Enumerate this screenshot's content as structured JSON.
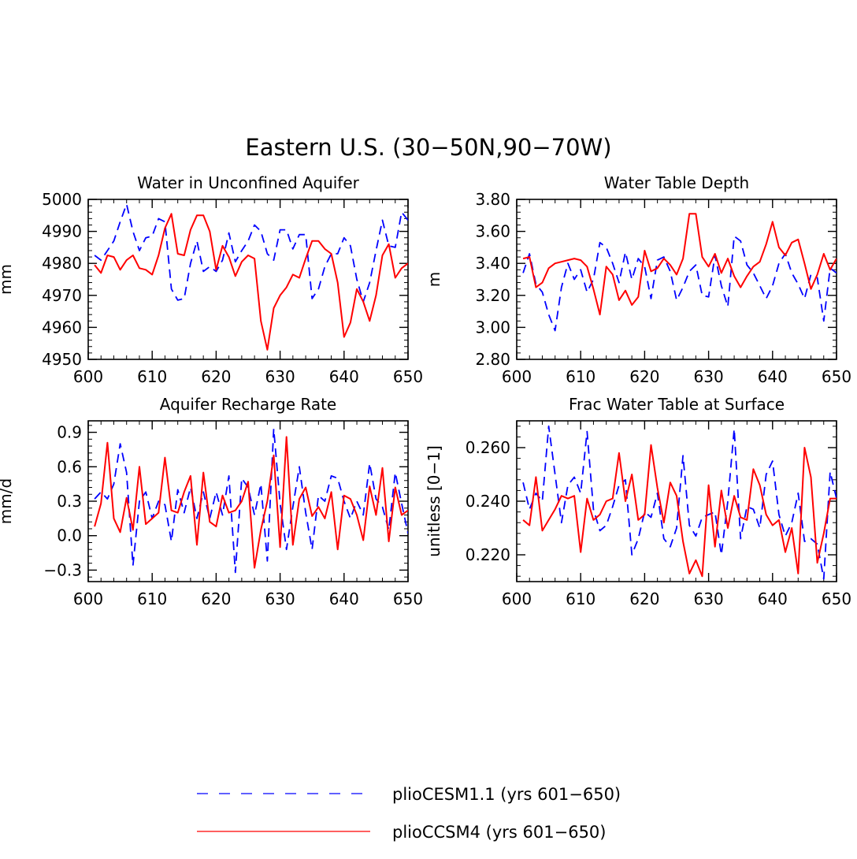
{
  "figure": {
    "title": "Eastern U.S. (30−50N,90−70W)"
  },
  "legend": [
    {
      "label": "plioCESM1.1 (yrs 601−650)",
      "color": "#0000ff",
      "dash": "dashed"
    },
    {
      "label": "plioCCSM4 (yrs 601−650)",
      "color": "#ff0000",
      "dash": "solid"
    }
  ],
  "chart_data": [
    {
      "type": "line",
      "title": "Water in Unconfined Aquifer",
      "ylabel": "mm",
      "xlim": [
        600,
        650
      ],
      "ylim": [
        4950,
        5000
      ],
      "xticks": [
        600,
        610,
        620,
        630,
        640,
        650
      ],
      "xtick_labels": [
        "600",
        "610",
        "620",
        "630",
        "640",
        "650"
      ],
      "yticks": [
        4950,
        4960,
        4970,
        4980,
        4990,
        5000
      ],
      "ytick_labels": [
        "4950",
        "4960",
        "4970",
        "4980",
        "4990",
        "5000"
      ],
      "x": [
        601,
        602,
        603,
        604,
        605,
        606,
        607,
        608,
        609,
        610,
        611,
        612,
        613,
        614,
        615,
        616,
        617,
        618,
        619,
        620,
        621,
        622,
        623,
        624,
        625,
        626,
        627,
        628,
        629,
        630,
        631,
        632,
        633,
        634,
        635,
        636,
        637,
        638,
        639,
        640,
        641,
        642,
        643,
        644,
        645,
        646,
        647,
        648,
        649,
        650
      ],
      "series": [
        {
          "name": "plioCESM1.1 (yrs 601−650)",
          "color": "#0000ff",
          "dash": "dashed",
          "values": [
            4982.5,
            4981,
            4984,
            4987,
            4993,
            4998.5,
            4990,
            4984,
            4988,
            4988.5,
            4994,
            4993,
            4972,
            4968.5,
            4969,
            4980,
            4987,
            4977.5,
            4979,
            4977.5,
            4981,
            4989.5,
            4980.5,
            4984,
            4987,
            4992,
            4990,
            4983,
            4981,
            4990.5,
            4990.5,
            4984.5,
            4989,
            4989,
            4969,
            4972,
            4979,
            4983,
            4983,
            4988,
            4985.5,
            4975,
            4968,
            4974,
            4984,
            4993.5,
            4985.5,
            4985,
            4996,
            4993.5
          ]
        },
        {
          "name": "plioCCSM4 (yrs 601−650)",
          "color": "#ff0000",
          "dash": "solid",
          "values": [
            4979.5,
            4977,
            4982.5,
            4982,
            4978,
            4981,
            4982.5,
            4978.5,
            4978,
            4976.5,
            4982.5,
            4991,
            4995.5,
            4983,
            4982.5,
            4990.5,
            4995,
            4995,
            4990,
            4978,
            4985.5,
            4982,
            4976,
            4980.5,
            4982.5,
            4981.5,
            4962,
            4953,
            4966,
            4970,
            4972.5,
            4976.5,
            4975.5,
            4981.5,
            4987,
            4987,
            4984.5,
            4983,
            4974,
            4957,
            4961.5,
            4972,
            4968,
            4962,
            4970,
            4982.5,
            4986,
            4975.5,
            4978.5,
            4980
          ]
        }
      ]
    },
    {
      "type": "line",
      "title": "Water Table Depth",
      "ylabel": "m",
      "xlim": [
        600,
        650
      ],
      "ylim": [
        2.8,
        3.8
      ],
      "xticks": [
        600,
        610,
        620,
        630,
        640,
        650
      ],
      "xtick_labels": [
        "600",
        "610",
        "620",
        "630",
        "640",
        "650"
      ],
      "yticks": [
        2.8,
        3.0,
        3.2,
        3.4,
        3.6,
        3.8
      ],
      "ytick_labels": [
        "2.80",
        "3.00",
        "3.20",
        "3.40",
        "3.60",
        "3.80"
      ],
      "x": [
        601,
        602,
        603,
        604,
        605,
        606,
        607,
        608,
        609,
        610,
        611,
        612,
        613,
        614,
        615,
        616,
        617,
        618,
        619,
        620,
        621,
        622,
        623,
        624,
        625,
        626,
        627,
        628,
        629,
        630,
        631,
        632,
        633,
        634,
        635,
        636,
        637,
        638,
        639,
        640,
        641,
        642,
        643,
        644,
        645,
        646,
        647,
        648,
        649,
        650
      ],
      "series": [
        {
          "name": "plioCESM1.1 (yrs 601−650)",
          "color": "#0000ff",
          "dash": "dashed",
          "values": [
            3.34,
            3.46,
            3.27,
            3.22,
            3.08,
            2.98,
            3.25,
            3.4,
            3.3,
            3.36,
            3.22,
            3.3,
            3.53,
            3.5,
            3.4,
            3.28,
            3.47,
            3.3,
            3.43,
            3.38,
            3.18,
            3.42,
            3.44,
            3.35,
            3.17,
            3.25,
            3.35,
            3.39,
            3.2,
            3.19,
            3.45,
            3.26,
            3.13,
            3.57,
            3.54,
            3.39,
            3.34,
            3.26,
            3.18,
            3.26,
            3.4,
            3.46,
            3.34,
            3.27,
            3.18,
            3.33,
            3.31,
            3.04,
            3.37,
            3.34
          ]
        },
        {
          "name": "plioCCSM4 (yrs 601−650)",
          "color": "#ff0000",
          "dash": "solid",
          "values": [
            3.43,
            3.44,
            3.25,
            3.28,
            3.37,
            3.4,
            3.41,
            3.42,
            3.43,
            3.42,
            3.38,
            3.24,
            3.08,
            3.38,
            3.33,
            3.17,
            3.23,
            3.14,
            3.19,
            3.48,
            3.35,
            3.37,
            3.43,
            3.39,
            3.33,
            3.43,
            3.71,
            3.71,
            3.44,
            3.38,
            3.46,
            3.34,
            3.43,
            3.32,
            3.25,
            3.32,
            3.38,
            3.41,
            3.52,
            3.66,
            3.5,
            3.45,
            3.53,
            3.55,
            3.4,
            3.24,
            3.33,
            3.46,
            3.36,
            3.43
          ]
        }
      ]
    },
    {
      "type": "line",
      "title": "Aquifer Recharge Rate",
      "ylabel": "mm/d",
      "xlim": [
        600,
        650
      ],
      "ylim": [
        -0.4,
        1.0
      ],
      "xticks": [
        600,
        610,
        620,
        630,
        640,
        650
      ],
      "xtick_labels": [
        "600",
        "610",
        "620",
        "630",
        "640",
        "650"
      ],
      "yticks": [
        -0.3,
        0.0,
        0.3,
        0.6,
        0.9
      ],
      "ytick_labels": [
        "−0.3",
        "0.0",
        "0.3",
        "0.6",
        "0.9"
      ],
      "x": [
        601,
        602,
        603,
        604,
        605,
        606,
        607,
        608,
        609,
        610,
        611,
        612,
        613,
        614,
        615,
        616,
        617,
        618,
        619,
        620,
        621,
        622,
        623,
        624,
        625,
        626,
        627,
        628,
        629,
        630,
        631,
        632,
        633,
        634,
        635,
        636,
        637,
        638,
        639,
        640,
        641,
        642,
        643,
        644,
        645,
        646,
        647,
        648,
        649,
        650
      ],
      "series": [
        {
          "name": "plioCESM1.1 (yrs 601−650)",
          "color": "#0000ff",
          "dash": "dashed",
          "values": [
            0.32,
            0.38,
            0.32,
            0.45,
            0.8,
            0.55,
            -0.26,
            0.3,
            0.38,
            0.15,
            0.3,
            0.27,
            -0.05,
            0.4,
            0.2,
            0.42,
            0.15,
            0.38,
            0.15,
            0.38,
            0.18,
            0.52,
            -0.32,
            0.5,
            0.42,
            0.18,
            0.45,
            -0.22,
            0.93,
            0.28,
            -0.12,
            0.25,
            0.6,
            0.2,
            -0.12,
            0.35,
            0.3,
            0.52,
            0.5,
            0.3,
            0.15,
            0.3,
            0.18,
            0.63,
            0.32,
            0.25,
            0.05,
            0.55,
            0.28,
            0.02
          ]
        },
        {
          "name": "plioCCSM4 (yrs 601−650)",
          "color": "#ff0000",
          "dash": "solid",
          "values": [
            0.08,
            0.28,
            0.81,
            0.15,
            0.03,
            0.33,
            0.05,
            0.6,
            0.1,
            0.15,
            0.2,
            0.68,
            0.22,
            0.2,
            0.38,
            0.52,
            -0.08,
            0.55,
            0.12,
            0.08,
            0.35,
            0.2,
            0.22,
            0.3,
            0.47,
            -0.28,
            0.05,
            0.3,
            0.7,
            -0.1,
            0.86,
            -0.08,
            0.32,
            0.42,
            0.17,
            0.25,
            0.15,
            0.38,
            -0.12,
            0.35,
            0.32,
            0.18,
            -0.04,
            0.43,
            0.18,
            0.59,
            -0.05,
            0.42,
            0.18,
            0.22
          ]
        }
      ]
    },
    {
      "type": "line",
      "title": "Frac Water Table at Surface",
      "ylabel": "unitless [0−1]",
      "xlim": [
        600,
        650
      ],
      "ylim": [
        0.21,
        0.27
      ],
      "xticks": [
        600,
        610,
        620,
        630,
        640,
        650
      ],
      "xtick_labels": [
        "600",
        "610",
        "620",
        "630",
        "640",
        "650"
      ],
      "yticks": [
        0.22,
        0.24,
        0.26
      ],
      "ytick_labels": [
        "0.220",
        "0.240",
        "0.260"
      ],
      "x": [
        601,
        602,
        603,
        604,
        605,
        606,
        607,
        608,
        609,
        610,
        611,
        612,
        613,
        614,
        615,
        616,
        617,
        618,
        619,
        620,
        621,
        622,
        623,
        624,
        625,
        626,
        627,
        628,
        629,
        630,
        631,
        632,
        633,
        634,
        635,
        636,
        637,
        638,
        639,
        640,
        641,
        642,
        643,
        644,
        645,
        646,
        647,
        648,
        649,
        650
      ],
      "series": [
        {
          "name": "plioCESM1.1 (yrs 601−650)",
          "color": "#0000ff",
          "dash": "dashed",
          "values": [
            0.247,
            0.237,
            0.243,
            0.24,
            0.268,
            0.25,
            0.232,
            0.246,
            0.249,
            0.243,
            0.266,
            0.237,
            0.229,
            0.231,
            0.238,
            0.246,
            0.248,
            0.22,
            0.226,
            0.236,
            0.234,
            0.243,
            0.226,
            0.223,
            0.23,
            0.257,
            0.231,
            0.227,
            0.234,
            0.235,
            0.236,
            0.22,
            0.24,
            0.267,
            0.226,
            0.238,
            0.237,
            0.23,
            0.25,
            0.255,
            0.235,
            0.227,
            0.232,
            0.243,
            0.225,
            0.226,
            0.224,
            0.211,
            0.251,
            0.241
          ]
        },
        {
          "name": "plioCCSM4 (yrs 601−650)",
          "color": "#ff0000",
          "dash": "solid",
          "values": [
            0.233,
            0.231,
            0.249,
            0.229,
            0.233,
            0.237,
            0.242,
            0.241,
            0.242,
            0.221,
            0.241,
            0.233,
            0.235,
            0.24,
            0.241,
            0.258,
            0.24,
            0.25,
            0.233,
            0.235,
            0.261,
            0.245,
            0.232,
            0.247,
            0.242,
            0.225,
            0.213,
            0.218,
            0.212,
            0.246,
            0.223,
            0.244,
            0.23,
            0.242,
            0.234,
            0.233,
            0.252,
            0.246,
            0.235,
            0.231,
            0.233,
            0.221,
            0.23,
            0.213,
            0.26,
            0.249,
            0.217,
            0.228,
            0.241,
            0.241
          ]
        }
      ]
    }
  ]
}
